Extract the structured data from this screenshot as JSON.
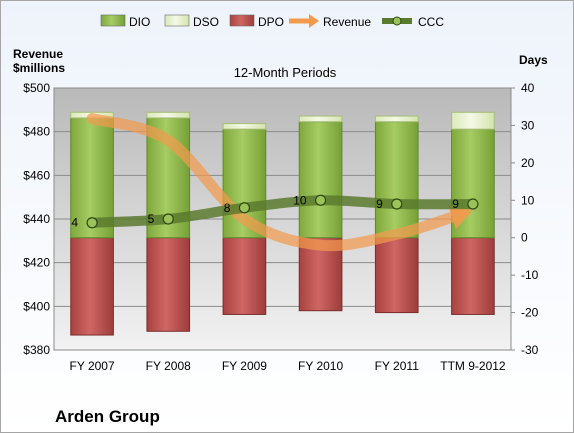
{
  "chart_data": {
    "type": "bar",
    "title": "12-Month Periods",
    "company": "Arden Group",
    "ylabel_left": [
      "Revenue",
      "$millions"
    ],
    "ylabel_right": "Days",
    "categories": [
      "FY 2007",
      "FY 2008",
      "FY 2009",
      "FY 2010",
      "FY 2011",
      "TTM 9-2012"
    ],
    "left_axis": {
      "min": 380,
      "max": 500,
      "ticks": [
        "$380",
        "$400",
        "$420",
        "$440",
        "$460",
        "$480",
        "$500"
      ]
    },
    "right_axis": {
      "min": -30,
      "max": 40,
      "ticks": [
        "-30",
        "-20",
        "-10",
        "0",
        "10",
        "20",
        "30",
        "40"
      ]
    },
    "grid": true,
    "legend_position": "top",
    "series": [
      {
        "name": "DIO",
        "kind": "bar-stack-positive",
        "axis": "right",
        "color": "#8fb84b",
        "values": [
          32,
          32,
          29,
          31,
          31,
          29
        ]
      },
      {
        "name": "DSO",
        "kind": "bar-stack-positive",
        "axis": "right",
        "color": "#e3efc4",
        "values": [
          1.5,
          1.5,
          1.5,
          1.5,
          1.5,
          4.5
        ]
      },
      {
        "name": "DPO",
        "kind": "bar-stack-negative",
        "axis": "right",
        "color": "#b84c4a",
        "values": [
          -26,
          -25,
          -20.5,
          -19.5,
          -20,
          -20.5
        ]
      },
      {
        "name": "Revenue",
        "kind": "line-arrow",
        "axis": "left",
        "color": "#f39a4e",
        "values": [
          486,
          476,
          440,
          428,
          433,
          444
        ]
      },
      {
        "name": "CCC",
        "kind": "line-markers",
        "axis": "right",
        "color": "#5a7a2e",
        "values": [
          4,
          5,
          8,
          10,
          9,
          9
        ]
      }
    ]
  }
}
